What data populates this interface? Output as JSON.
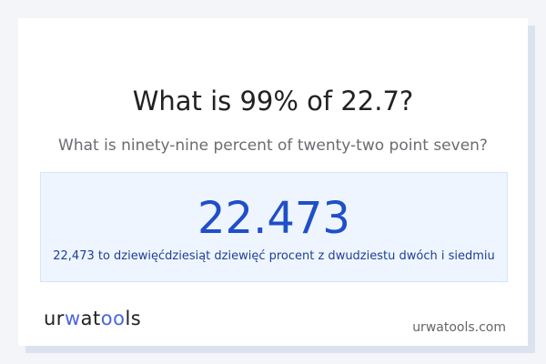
{
  "title": "What is 99% of 22.7?",
  "subtitle": "What is ninety-nine percent of twenty-two point seven?",
  "answer": "22.473",
  "answer_words": "22,473 to dziewięćdziesiąt dziewięć procent z dwudziestu dwóch i siedmiu",
  "logo": {
    "text_a": "ur",
    "text_b": "w",
    "text_c": "at",
    "text_d": "oo",
    "text_e": "ls"
  },
  "site": "urwatools.com",
  "colors": {
    "accent": "#1f4fc9",
    "logo_accent": "#4a66e0"
  }
}
